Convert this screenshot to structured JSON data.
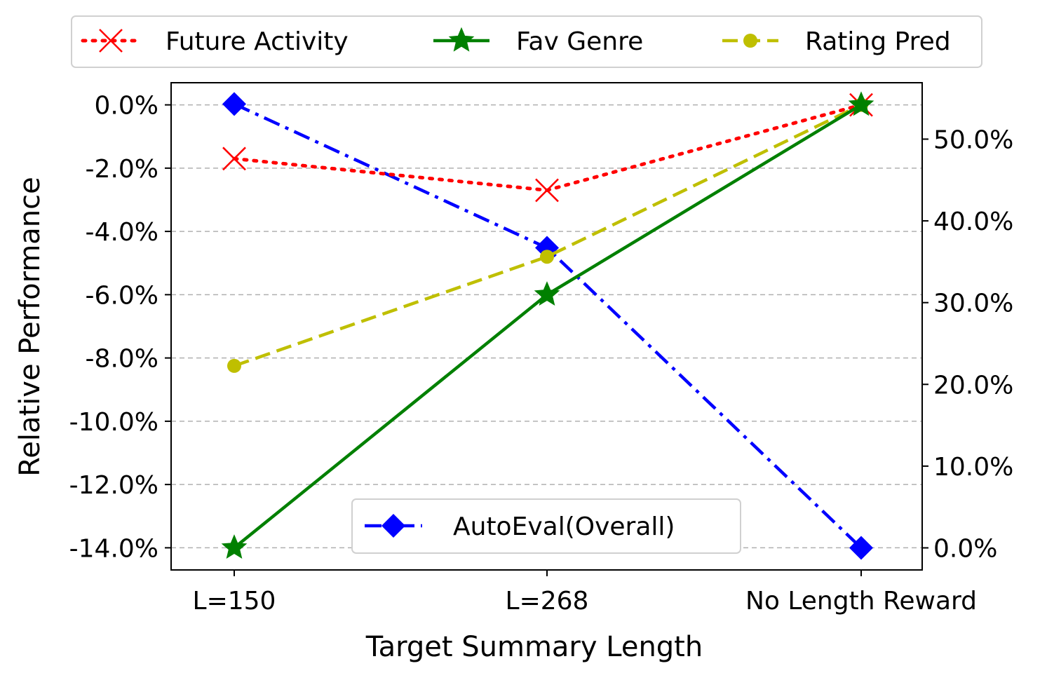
{
  "chart_data": {
    "type": "line",
    "xlabel": "Target Summary Length",
    "ylabel": "Relative Performance",
    "categories": [
      "L=150",
      "L=268",
      "No Length Reward"
    ],
    "y_left": {
      "ticks": [
        "0.0%",
        "-2.0%",
        "-4.0%",
        "-6.0%",
        "-8.0%",
        "-10.0%",
        "-12.0%",
        "-14.0%"
      ],
      "tick_values": [
        0,
        -2,
        -4,
        -6,
        -8,
        -10,
        -12,
        -14
      ],
      "range": [
        -14.7,
        0.7
      ]
    },
    "y_right": {
      "ticks": [
        "0.0%",
        "10.0%",
        "20.0%",
        "30.0%",
        "40.0%",
        "50.0%"
      ],
      "tick_values": [
        0,
        10,
        20,
        30,
        40,
        50
      ],
      "range": [
        -2.7,
        56.9
      ]
    },
    "grid": "horizontal dashed",
    "legend_top": "top, outside",
    "legend_inner": "lower center",
    "series": [
      {
        "name": "Future Activity",
        "axis": "left",
        "values": [
          -1.7,
          -2.7,
          0.0
        ],
        "color": "#ff0000",
        "style": "dotted",
        "marker": "x"
      },
      {
        "name": "Fav Genre",
        "axis": "left",
        "values": [
          -14.0,
          -6.0,
          0.0
        ],
        "color": "#008000",
        "style": "solid",
        "marker": "star"
      },
      {
        "name": "Rating Pred",
        "axis": "left",
        "values": [
          -8.25,
          -4.8,
          0.0
        ],
        "color": "#bfbf00",
        "style": "dashed",
        "marker": "circle"
      },
      {
        "name": "AutoEval(Overall)",
        "axis": "right",
        "values": [
          54.3,
          36.7,
          0.0
        ],
        "color": "#0000ff",
        "style": "dashdot",
        "marker": "diamond"
      }
    ]
  }
}
